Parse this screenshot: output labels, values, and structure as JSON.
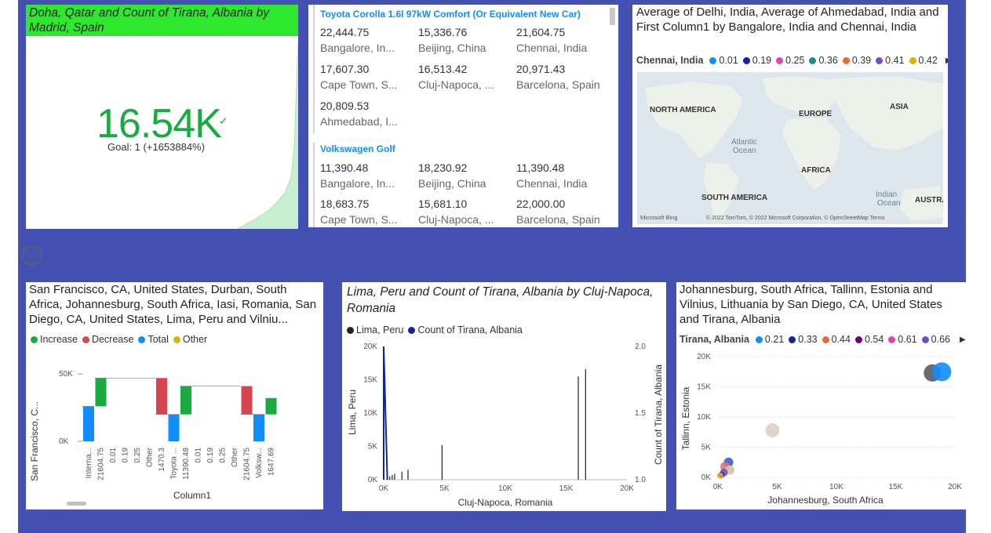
{
  "kpi": {
    "title": "Doha, Qatar and Count of Tirana, Albania by Madrid, Spain",
    "value": "16.54K",
    "goal": "Goal: 1 (+1653884%)",
    "header_color": "#2ee82e",
    "value_color": "#1aab40"
  },
  "matrix": {
    "groups": [
      {
        "name": "Toyota Corolla 1.6l 97kW Comfort (Or Equivalent New Car)",
        "cells": [
          {
            "value": "22,444.75",
            "city": "Bangalore, In..."
          },
          {
            "value": "15,336.76",
            "city": "Beijing, China"
          },
          {
            "value": "21,604.75",
            "city": "Chennai, India"
          },
          {
            "value": "17,607.30",
            "city": "Cape Town, S..."
          },
          {
            "value": "16,513.42",
            "city": "Cluj-Napoca, ..."
          },
          {
            "value": "20,971.43",
            "city": "Barcelona, Spain"
          },
          {
            "value": "20,809.53",
            "city": "Ahmedabad, I..."
          }
        ]
      },
      {
        "name": "Volkswagen Golf",
        "cells": [
          {
            "value": "11,390.48",
            "city": "Bangalore, In..."
          },
          {
            "value": "18,230.92",
            "city": "Beijing, China"
          },
          {
            "value": "11,390.48",
            "city": "Chennai, India"
          },
          {
            "value": "18,683.75",
            "city": "Cape Town, S..."
          },
          {
            "value": "15,681.10",
            "city": "Cluj-Napoca, ..."
          },
          {
            "value": "22,000.00",
            "city": "Barcelona, Spain"
          }
        ]
      }
    ]
  },
  "map": {
    "title": "Average of Delhi, India, Average of Ahmedabad, India and First Column1 by Bangalore, India and Chennai, India",
    "legend_title": "Chennai, India",
    "legend": [
      {
        "label": "0.01",
        "color": "#118dff"
      },
      {
        "label": "0.19",
        "color": "#12239e"
      },
      {
        "label": "0.25",
        "color": "#e044a7"
      },
      {
        "label": "0.36",
        "color": "#1a8f7a"
      },
      {
        "label": "0.39",
        "color": "#e66c37"
      },
      {
        "label": "0.41",
        "color": "#744ec2"
      },
      {
        "label": "0.42",
        "color": "#d9b300"
      }
    ],
    "labels": {
      "north_america": "NORTH AMERICA",
      "europe": "EUROPE",
      "asia": "ASIA",
      "atlantic": "Atlantic",
      "ocean": "Ocean",
      "africa": "AFRICA",
      "south_america": "SOUTH AMERICA",
      "indian": "Indian",
      "indian_ocean": "Ocean",
      "australia": "AUSTRA"
    },
    "bing": "Microsoft Bing",
    "copyright": "© 2022 TomTom, © 2022 Microsoft Corporation, © OpenStreetMap  Terms"
  },
  "waterfall": {
    "title": "San Francisco, CA, United States, Durban, South Africa, Johannesburg, South Africa, Iasi, Romania, San Diego, CA, United States, Lima, Peru and Vilniu...",
    "legend": [
      {
        "label": "Increase",
        "color": "#1aab40"
      },
      {
        "label": "Decrease",
        "color": "#d64550"
      },
      {
        "label": "Total",
        "color": "#118dff"
      },
      {
        "label": "Other",
        "color": "#d9b300"
      }
    ],
    "ylabel": "San Francisco, C...",
    "xlabel": "Column1"
  },
  "chart_data": [
    {
      "type": "line",
      "title": "Lima, Peru and Count of Tirana, Albania by Cluj-Napoca, Romania",
      "xlabel": "Cluj-Napoca, Romania",
      "ylabel": "Lima, Peru",
      "y2label": "Count of Tirana, Albania",
      "xlim": [
        0,
        20000
      ],
      "ylim": [
        0,
        20000
      ],
      "y2lim": [
        1.0,
        2.0
      ],
      "x_ticks": [
        "0K",
        "5K",
        "10K",
        "15K",
        "20K"
      ],
      "y_ticks": [
        "0K",
        "5K",
        "10K",
        "15K",
        "20K"
      ],
      "y2_ticks": [
        "1.0",
        "1.5",
        "2.0"
      ],
      "series": [
        {
          "name": "Lima, Peru",
          "color": "#222222",
          "x": [
            300,
            500,
            700,
            900,
            1500,
            2000,
            4800,
            16000,
            16600
          ],
          "y": [
            300,
            500,
            700,
            900,
            1200,
            1500,
            5200,
            15500,
            16600
          ]
        },
        {
          "name": "Count of Tirana, Albania",
          "color": "#12239e",
          "x": [
            0,
            0,
            300
          ],
          "y": [
            1.0,
            2.0,
            1.0
          ]
        }
      ]
    },
    {
      "type": "scatter",
      "title": "Johannesburg, South Africa, Tallinn, Estonia and Vilnius, Lithuania by San Diego, CA, United States and Tirana, Albania",
      "legend_title": "Tirana, Albania",
      "xlabel": "Johannesburg, South Africa",
      "ylabel": "Tallinn, Estonia",
      "xlim": [
        0,
        20000
      ],
      "ylim": [
        0,
        20000
      ],
      "x_ticks": [
        "0K",
        "5K",
        "10K",
        "15K",
        "20K"
      ],
      "y_ticks": [
        "0K",
        "5K",
        "10K",
        "15K",
        "20K"
      ],
      "series": [
        {
          "name": "0.21",
          "color": "#118dff"
        },
        {
          "name": "0.33",
          "color": "#12239e"
        },
        {
          "name": "0.44",
          "color": "#e66c37"
        },
        {
          "name": "0.54",
          "color": "#6b007b"
        },
        {
          "name": "0.61",
          "color": "#e044a7"
        },
        {
          "name": "0.66",
          "color": "#744ec2"
        }
      ],
      "points": [
        {
          "x": 18100,
          "y": 17300,
          "color": "#555b66",
          "r": 11
        },
        {
          "x": 18900,
          "y": 17500,
          "color": "#118dff",
          "r": 12
        },
        {
          "x": 4600,
          "y": 7800,
          "color": "#dccfc7",
          "r": 9
        },
        {
          "x": 900,
          "y": 2500,
          "color": "#3d5fd1",
          "r": 6
        },
        {
          "x": 600,
          "y": 1800,
          "color": "#d17a7a",
          "r": 6
        },
        {
          "x": 1000,
          "y": 1200,
          "color": "#d6c59b",
          "r": 6
        },
        {
          "x": 500,
          "y": 800,
          "color": "#7a4fbf",
          "r": 5
        },
        {
          "x": 300,
          "y": 400,
          "color": "#12239e",
          "r": 4
        },
        {
          "x": 200,
          "y": 300,
          "color": "#e6a23c",
          "r": 4
        }
      ]
    }
  ],
  "waterfall_data": {
    "categories": [
      "Interna...",
      "21604.75",
      "0.01",
      "0.19",
      "0.25",
      "Other",
      "1470.3",
      "Toyota ...",
      "11390.48",
      "0.01",
      "0.19",
      "0.25",
      "Other",
      "21604.75",
      "Volksw...",
      "1647.69"
    ],
    "ylim": [
      0,
      60000
    ],
    "y_ticks": [
      "0K",
      "50K"
    ],
    "bars": [
      {
        "start": 0,
        "end": 26000,
        "kind": "total"
      },
      {
        "start": 26000,
        "end": 47000,
        "kind": "increase"
      },
      {
        "start": 47000,
        "end": 47000,
        "kind": "flat"
      },
      {
        "start": 47000,
        "end": 47000,
        "kind": "flat"
      },
      {
        "start": 47000,
        "end": 47000,
        "kind": "flat"
      },
      {
        "start": 47000,
        "end": 47000,
        "kind": "flat"
      },
      {
        "start": 47000,
        "end": 20000,
        "kind": "decrease"
      },
      {
        "start": 0,
        "end": 20000,
        "kind": "total"
      },
      {
        "start": 20000,
        "end": 41000,
        "kind": "increase"
      },
      {
        "start": 41000,
        "end": 41000,
        "kind": "flat"
      },
      {
        "start": 41000,
        "end": 41000,
        "kind": "flat"
      },
      {
        "start": 41000,
        "end": 41000,
        "kind": "flat"
      },
      {
        "start": 41000,
        "end": 41000,
        "kind": "flat"
      },
      {
        "start": 41000,
        "end": 20000,
        "kind": "decrease"
      },
      {
        "start": 0,
        "end": 20000,
        "kind": "total"
      },
      {
        "start": 20000,
        "end": 32000,
        "kind": "increase"
      }
    ]
  }
}
